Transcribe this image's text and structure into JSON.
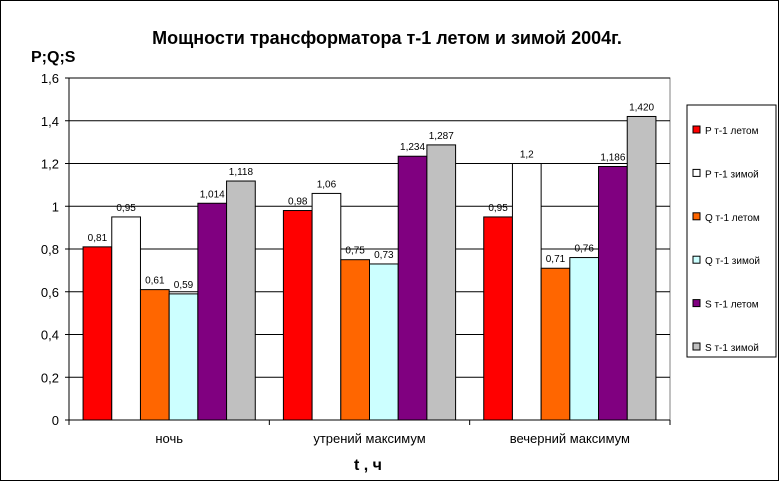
{
  "chart_data": {
    "type": "bar",
    "title": "Мощности трансформатора т-1 летом и зимой 2004г.",
    "ylabel": "P;Q;S",
    "xlabel": "t , ч",
    "ylim": [
      0,
      1.6
    ],
    "yticks": [
      "0",
      "0,2",
      "0,4",
      "0,6",
      "0,8",
      "1",
      "1,2",
      "1,4",
      "1,6"
    ],
    "grid": true,
    "legend_position": "right",
    "categories": [
      "ночь",
      "утрений максимум",
      "вечерний максимум"
    ],
    "series": [
      {
        "name": "P т-1 летом",
        "color": "#ff0000",
        "values": [
          0.81,
          0.98,
          0.95
        ],
        "labels": [
          "0,81",
          "0,98",
          "0,95"
        ]
      },
      {
        "name": "P т-1 зимой",
        "color": "#ffffff",
        "values": [
          0.95,
          1.06,
          1.2
        ],
        "labels": [
          "0,95",
          "1,06",
          "1,2"
        ]
      },
      {
        "name": "Q т-1 летом",
        "color": "#ff6600",
        "values": [
          0.61,
          0.75,
          0.71
        ],
        "labels": [
          "0,61",
          "0,75",
          "0,71"
        ]
      },
      {
        "name": "Q т-1 зимой",
        "color": "#ccffff",
        "values": [
          0.59,
          0.73,
          0.76
        ],
        "labels": [
          "0,59",
          "0,73",
          "0,76"
        ]
      },
      {
        "name": "S т-1 летом",
        "color": "#800080",
        "values": [
          1.014,
          1.234,
          1.186
        ],
        "labels": [
          "1,014",
          "1,234",
          "1,186"
        ]
      },
      {
        "name": "S т-1 зимой",
        "color": "#c0c0c0",
        "values": [
          1.118,
          1.287,
          1.42
        ],
        "labels": [
          "1,118",
          "1,287",
          "1,420"
        ]
      }
    ]
  }
}
